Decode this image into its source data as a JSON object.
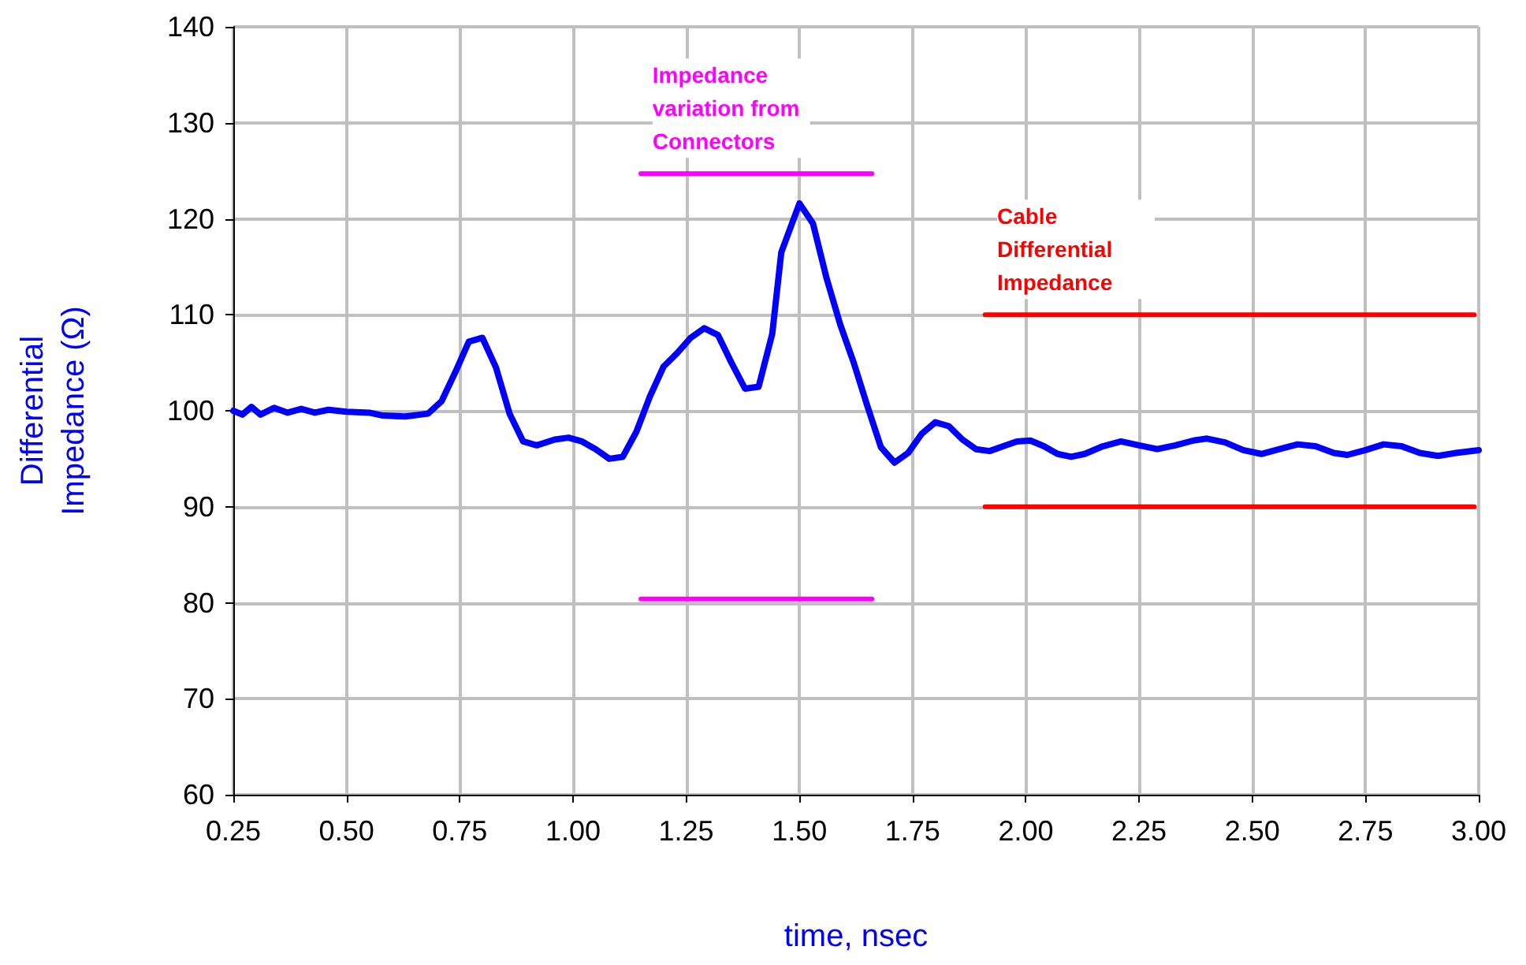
{
  "chart_data": {
    "type": "line",
    "xlabel": "time, nsec",
    "ylabel": "Differential Impedance (Ω)",
    "xlim": [
      0.25,
      3
    ],
    "xticks": [
      {
        "value": 0.25,
        "label": "0.25"
      },
      {
        "value": 0.5,
        "label": "0.50"
      },
      {
        "value": 0.75,
        "label": "0.75"
      },
      {
        "value": 1,
        "label": "1.00"
      },
      {
        "value": 1.25,
        "label": "1.25"
      },
      {
        "value": 1.5,
        "label": "1.50"
      },
      {
        "value": 1.75,
        "label": "1.75"
      },
      {
        "value": 2,
        "label": "2.00"
      },
      {
        "value": 2.25,
        "label": "2.25"
      },
      {
        "value": 2.5,
        "label": "2.50"
      },
      {
        "value": 2.75,
        "label": "2.75"
      },
      {
        "value": 3,
        "label": "3.00"
      }
    ],
    "ylim": [
      60,
      140
    ],
    "yticks": [
      60,
      70,
      80,
      90,
      100,
      110,
      120,
      130,
      140
    ],
    "grid": true,
    "marker": "none",
    "line_style": "solid",
    "annotations": [
      "Impedance variation from Connectors",
      "Cable Differential Impedance"
    ],
    "series": [
      {
        "color": "#0000ff",
        "x": [
          0.25,
          0.27,
          0.29,
          0.31,
          0.34,
          0.37,
          0.4,
          0.43,
          0.46,
          0.5,
          0.55,
          0.58,
          0.63,
          0.68,
          0.71,
          0.74,
          0.77,
          0.8,
          0.83,
          0.86,
          0.89,
          0.92,
          0.96,
          0.99,
          1.02,
          1.05,
          1.08,
          1.11,
          1.14,
          1.17,
          1.2,
          1.23,
          1.26,
          1.29,
          1.32,
          1.35,
          1.38,
          1.41,
          1.44,
          1.46,
          1.5,
          1.53,
          1.56,
          1.59,
          1.62,
          1.65,
          1.68,
          1.71,
          1.74,
          1.77,
          1.8,
          1.83,
          1.86,
          1.89,
          1.92,
          1.95,
          1.98,
          2.01,
          2.04,
          2.07,
          2.1,
          2.13,
          2.17,
          2.21,
          2.25,
          2.29,
          2.33,
          2.37,
          2.4,
          2.44,
          2.48,
          2.52,
          2.56,
          2.6,
          2.64,
          2.68,
          2.71,
          2.75,
          2.79,
          2.83,
          2.87,
          2.91,
          2.95,
          3
        ],
        "values": [
          100,
          99.6,
          100.4,
          99.6,
          100.3,
          99.8,
          100.2,
          99.8,
          100.1,
          99.9,
          99.8,
          99.5,
          99.4,
          99.7,
          101,
          104,
          107.2,
          107.6,
          104.5,
          99.7,
          96.8,
          96.4,
          97,
          97.2,
          96.8,
          96,
          95,
          95.2,
          97.8,
          101.5,
          104.6,
          106,
          107.6,
          108.6,
          107.9,
          105,
          102.3,
          102.5,
          108,
          116.5,
          121.6,
          119.5,
          113.8,
          109,
          105,
          100.5,
          96.2,
          94.6,
          95.6,
          97.6,
          98.8,
          98.4,
          97,
          96,
          95.8,
          96.3,
          96.8,
          96.9,
          96.3,
          95.5,
          95.2,
          95.5,
          96.3,
          96.8,
          96.4,
          96,
          96.4,
          96.9,
          97.1,
          96.7,
          95.9,
          95.5,
          96,
          96.5,
          96.3,
          95.6,
          95.4,
          95.9,
          96.5,
          96.3,
          95.6,
          95.3,
          95.6,
          95.9
        ]
      },
      {
        "color": "#ff00ff",
        "x": [
          1.15,
          1.66
        ],
        "values": [
          124.7,
          124.7
        ]
      },
      {
        "color": "#ff00ff",
        "x": [
          1.15,
          1.66
        ],
        "values": [
          80.4,
          80.4
        ]
      },
      {
        "color": "#ff0000",
        "x": [
          1.91,
          2.99
        ],
        "values": [
          110,
          110
        ]
      },
      {
        "color": "#ff0000",
        "x": [
          1.91,
          2.99
        ],
        "values": [
          90,
          90
        ]
      }
    ]
  }
}
